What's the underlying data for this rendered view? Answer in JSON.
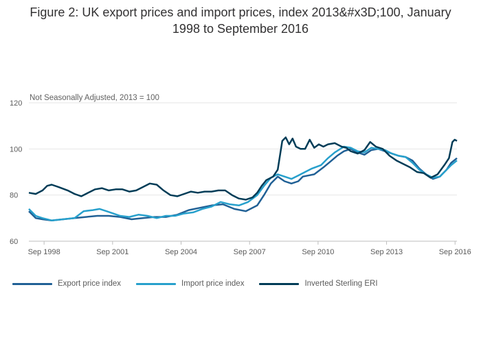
{
  "chart_data": {
    "type": "line",
    "title_line1": "Figure 2: UK export prices and import prices, index 2013&#x3D;100, January",
    "title_line2": "1998 to September 2016",
    "subtitle": "Not Seasonally Adjusted, 2013 = 100",
    "x_range": [
      1998.0,
      2016.75
    ],
    "ylim": [
      60,
      120
    ],
    "y_ticks": [
      60,
      80,
      100,
      120
    ],
    "y_tick_labels": [
      "60",
      "80",
      "100",
      "120"
    ],
    "x_ticks": [
      1998.667,
      2001.667,
      2004.667,
      2007.667,
      2010.667,
      2013.667,
      2016.667
    ],
    "x_tick_labels": [
      "Sep 1998",
      "Sep 2001",
      "Sep 2004",
      "Sep 2007",
      "Sep 2010",
      "Sep 2013",
      "Sep 2016"
    ],
    "legend_position": "bottom-left",
    "grid": true,
    "series": [
      {
        "name": "Export price index",
        "color": "#206095",
        "points": [
          [
            1998.0,
            73
          ],
          [
            1998.3,
            70
          ],
          [
            1998.6,
            69.5
          ],
          [
            1999.0,
            69
          ],
          [
            1999.5,
            69.5
          ],
          [
            2000.0,
            70
          ],
          [
            2000.5,
            70.5
          ],
          [
            2001.0,
            71
          ],
          [
            2001.5,
            71
          ],
          [
            2002.0,
            70.5
          ],
          [
            2002.5,
            69.5
          ],
          [
            2003.0,
            70
          ],
          [
            2003.5,
            70.5
          ],
          [
            2004.0,
            70.5
          ],
          [
            2004.5,
            71.5
          ],
          [
            2005.0,
            73.5
          ],
          [
            2005.5,
            74.5
          ],
          [
            2006.0,
            75.5
          ],
          [
            2006.5,
            76
          ],
          [
            2007.0,
            74
          ],
          [
            2007.5,
            73
          ],
          [
            2008.0,
            75.5
          ],
          [
            2008.3,
            80
          ],
          [
            2008.6,
            85
          ],
          [
            2008.9,
            88
          ],
          [
            2009.2,
            86
          ],
          [
            2009.5,
            85
          ],
          [
            2009.8,
            86
          ],
          [
            2010.0,
            88
          ],
          [
            2010.5,
            89
          ],
          [
            2010.9,
            92
          ],
          [
            2011.2,
            94.5
          ],
          [
            2011.5,
            97
          ],
          [
            2011.8,
            99
          ],
          [
            2012.1,
            100
          ],
          [
            2012.4,
            98.5
          ],
          [
            2012.7,
            97.5
          ],
          [
            2013.0,
            99.5
          ],
          [
            2013.3,
            100
          ],
          [
            2013.6,
            99
          ],
          [
            2013.9,
            98
          ],
          [
            2014.2,
            97
          ],
          [
            2014.5,
            96.5
          ],
          [
            2014.8,
            95
          ],
          [
            2015.1,
            91.5
          ],
          [
            2015.4,
            89
          ],
          [
            2015.7,
            87
          ],
          [
            2016.0,
            88
          ],
          [
            2016.3,
            91
          ],
          [
            2016.5,
            94
          ],
          [
            2016.75,
            96
          ]
        ]
      },
      {
        "name": "Import price index",
        "color": "#27a0cc",
        "points": [
          [
            1998.0,
            74
          ],
          [
            1998.3,
            71
          ],
          [
            1998.6,
            70
          ],
          [
            1999.0,
            69
          ],
          [
            1999.5,
            69.5
          ],
          [
            2000.0,
            70
          ],
          [
            2000.4,
            73
          ],
          [
            2000.8,
            73.5
          ],
          [
            2001.1,
            74
          ],
          [
            2001.4,
            73
          ],
          [
            2001.7,
            72
          ],
          [
            2002.0,
            71
          ],
          [
            2002.4,
            70.5
          ],
          [
            2002.8,
            71.5
          ],
          [
            2003.2,
            71
          ],
          [
            2003.6,
            70
          ],
          [
            2004.0,
            71
          ],
          [
            2004.4,
            71
          ],
          [
            2004.8,
            72
          ],
          [
            2005.2,
            72.5
          ],
          [
            2005.6,
            74
          ],
          [
            2006.0,
            75
          ],
          [
            2006.4,
            77
          ],
          [
            2006.8,
            76
          ],
          [
            2007.2,
            75.5
          ],
          [
            2007.6,
            77
          ],
          [
            2008.0,
            80
          ],
          [
            2008.3,
            84
          ],
          [
            2008.6,
            87.5
          ],
          [
            2008.9,
            89
          ],
          [
            2009.2,
            88
          ],
          [
            2009.5,
            87
          ],
          [
            2009.8,
            88.5
          ],
          [
            2010.1,
            90
          ],
          [
            2010.4,
            91.5
          ],
          [
            2010.8,
            93
          ],
          [
            2011.1,
            96
          ],
          [
            2011.4,
            98.5
          ],
          [
            2011.8,
            101
          ],
          [
            2012.1,
            100.5
          ],
          [
            2012.4,
            99
          ],
          [
            2012.7,
            98.5
          ],
          [
            2013.0,
            100.5
          ],
          [
            2013.3,
            100
          ],
          [
            2013.6,
            99.5
          ],
          [
            2013.9,
            98
          ],
          [
            2014.2,
            97
          ],
          [
            2014.5,
            96.5
          ],
          [
            2014.8,
            94
          ],
          [
            2015.1,
            91
          ],
          [
            2015.4,
            89
          ],
          [
            2015.7,
            87.5
          ],
          [
            2016.0,
            88
          ],
          [
            2016.3,
            91
          ],
          [
            2016.5,
            93
          ],
          [
            2016.75,
            95
          ]
        ]
      },
      {
        "name": "Inverted Sterling ERI",
        "color": "#003c57",
        "points": [
          [
            1998.0,
            81
          ],
          [
            1998.3,
            80.5
          ],
          [
            1998.6,
            82
          ],
          [
            1998.8,
            84
          ],
          [
            1999.0,
            84.5
          ],
          [
            1999.3,
            83.5
          ],
          [
            1999.7,
            82
          ],
          [
            2000.0,
            80.5
          ],
          [
            2000.3,
            79.5
          ],
          [
            2000.6,
            81
          ],
          [
            2000.9,
            82.5
          ],
          [
            2001.2,
            83
          ],
          [
            2001.5,
            82
          ],
          [
            2001.8,
            82.5
          ],
          [
            2002.1,
            82.5
          ],
          [
            2002.4,
            81.5
          ],
          [
            2002.7,
            82
          ],
          [
            2003.0,
            83.5
          ],
          [
            2003.3,
            85
          ],
          [
            2003.6,
            84.5
          ],
          [
            2003.9,
            82
          ],
          [
            2004.2,
            80
          ],
          [
            2004.5,
            79.5
          ],
          [
            2004.8,
            80.5
          ],
          [
            2005.1,
            81.5
          ],
          [
            2005.4,
            81
          ],
          [
            2005.7,
            81.5
          ],
          [
            2006.0,
            81.5
          ],
          [
            2006.3,
            82
          ],
          [
            2006.6,
            82
          ],
          [
            2006.9,
            80
          ],
          [
            2007.2,
            78.5
          ],
          [
            2007.5,
            78
          ],
          [
            2007.8,
            79
          ],
          [
            2008.0,
            81
          ],
          [
            2008.2,
            84
          ],
          [
            2008.4,
            86.5
          ],
          [
            2008.7,
            88
          ],
          [
            2008.9,
            91
          ],
          [
            2009.1,
            103.5
          ],
          [
            2009.25,
            105
          ],
          [
            2009.4,
            102
          ],
          [
            2009.55,
            104.5
          ],
          [
            2009.7,
            101
          ],
          [
            2009.9,
            100
          ],
          [
            2010.1,
            100
          ],
          [
            2010.3,
            104
          ],
          [
            2010.5,
            100.5
          ],
          [
            2010.7,
            102
          ],
          [
            2010.9,
            101
          ],
          [
            2011.1,
            102
          ],
          [
            2011.4,
            102.5
          ],
          [
            2011.7,
            101
          ],
          [
            2011.9,
            100.5
          ],
          [
            2012.1,
            99
          ],
          [
            2012.4,
            98
          ],
          [
            2012.7,
            99.5
          ],
          [
            2012.95,
            103
          ],
          [
            2013.2,
            101
          ],
          [
            2013.5,
            100
          ],
          [
            2013.8,
            97
          ],
          [
            2014.1,
            95
          ],
          [
            2014.4,
            93.5
          ],
          [
            2014.7,
            92
          ],
          [
            2015.0,
            90
          ],
          [
            2015.3,
            89.5
          ],
          [
            2015.6,
            87.5
          ],
          [
            2015.9,
            89
          ],
          [
            2016.2,
            93
          ],
          [
            2016.4,
            96
          ],
          [
            2016.55,
            103
          ],
          [
            2016.65,
            104
          ],
          [
            2016.75,
            103.5
          ]
        ]
      }
    ]
  }
}
